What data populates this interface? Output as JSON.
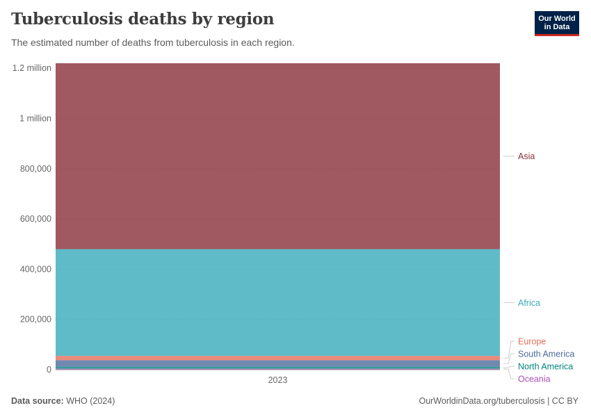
{
  "header": {
    "title": "Tuberculosis deaths by region",
    "subtitle": "The estimated number of deaths from tuberculosis in each region."
  },
  "logo": {
    "line1": "Our World",
    "line2": "in Data"
  },
  "footer": {
    "source_label": "Data source:",
    "source_value": "WHO (2024)",
    "url": "OurWorldinData.org/tuberculosis",
    "license": "CC BY"
  },
  "chart_data": {
    "type": "area",
    "stacked": true,
    "title": "Tuberculosis deaths by region",
    "subtitle": "The estimated number of deaths from tuberculosis in each region.",
    "xlabel": "",
    "ylabel": "",
    "categories": [
      "2023"
    ],
    "ylim": [
      0,
      1220000
    ],
    "yticks": [
      0,
      200000,
      400000,
      600000,
      800000,
      1000000,
      1200000
    ],
    "ytick_labels": [
      "0",
      "200,000",
      "400,000",
      "600,000",
      "800,000",
      "1 million",
      "1.2 million"
    ],
    "grid": true,
    "legend": "right",
    "series": [
      {
        "name": "Oceania",
        "values": [
          4500
        ],
        "color": "#a652ba"
      },
      {
        "name": "North America",
        "values": [
          7500
        ],
        "color": "#00847e"
      },
      {
        "name": "South America",
        "values": [
          26000
        ],
        "color": "#4c6a9c"
      },
      {
        "name": "Europe",
        "values": [
          17000
        ],
        "color": "#e56e5a"
      },
      {
        "name": "Africa",
        "values": [
          425000
        ],
        "color": "#38aaba"
      },
      {
        "name": "Asia",
        "values": [
          740000
        ],
        "color": "#883039"
      }
    ]
  }
}
